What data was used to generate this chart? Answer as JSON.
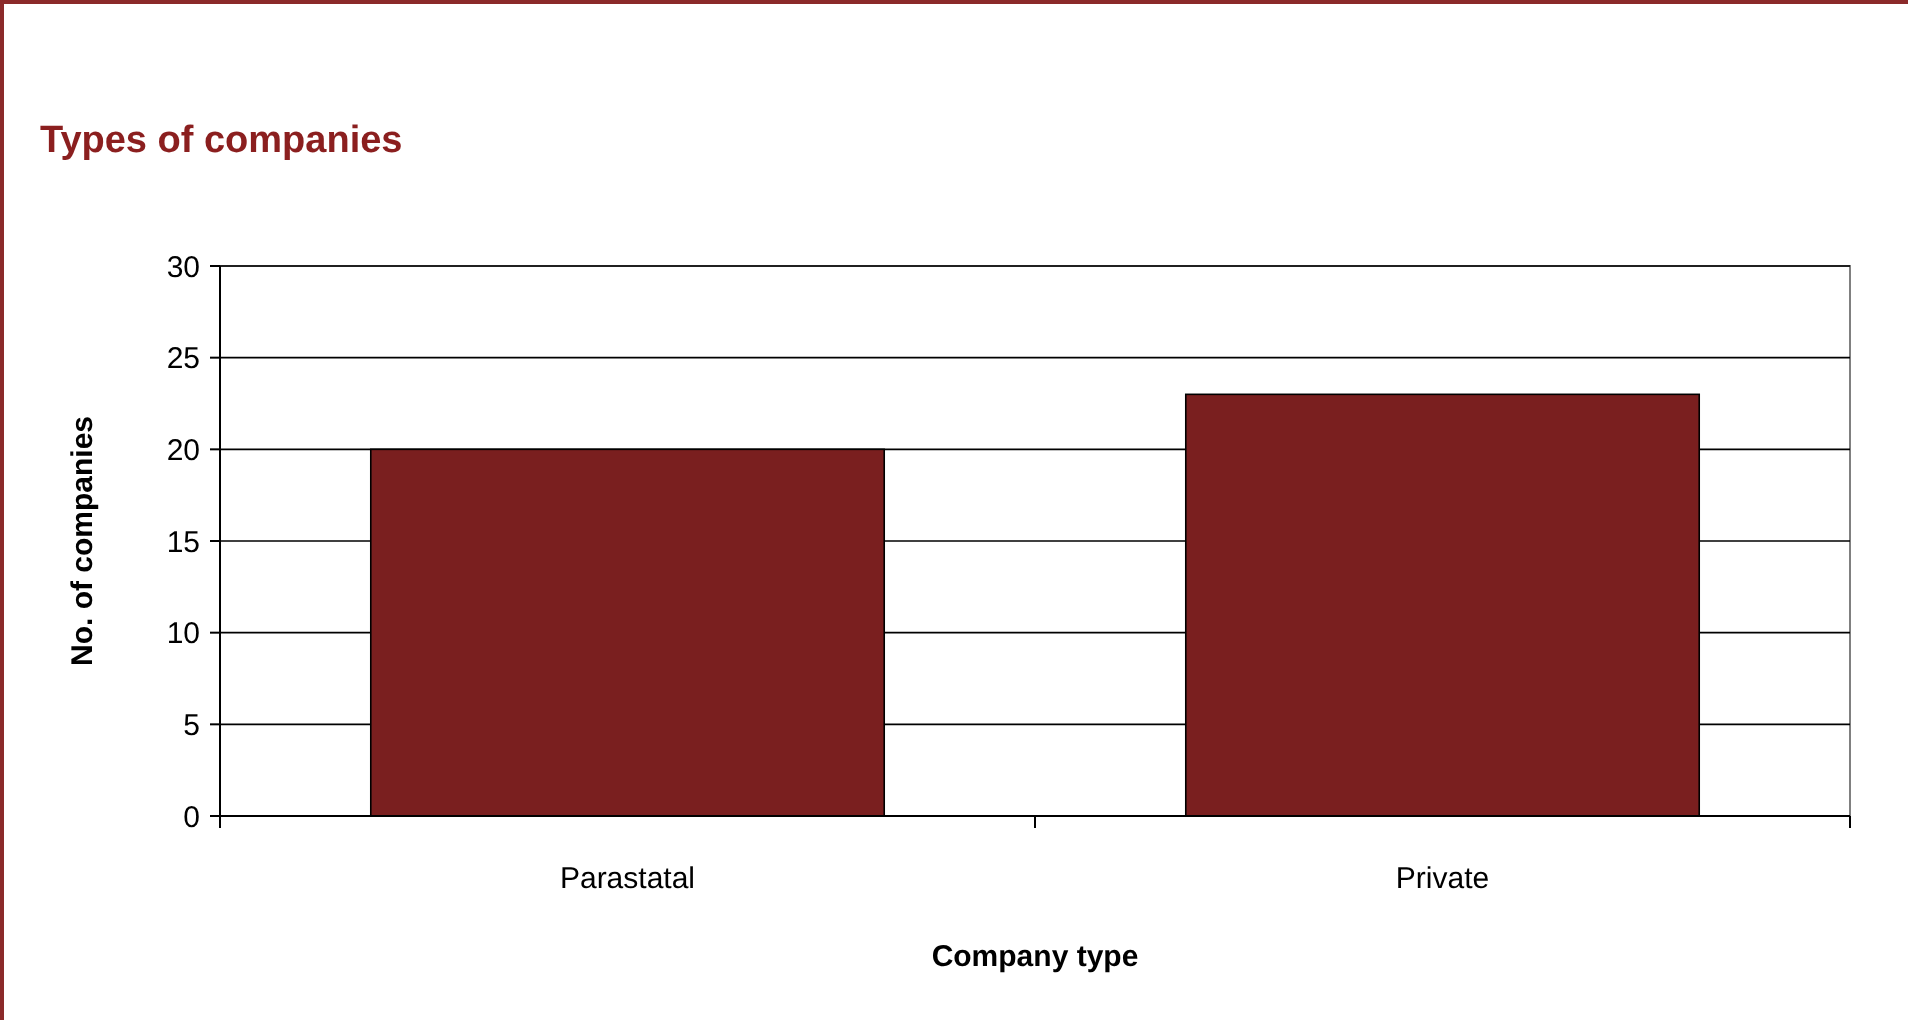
{
  "chart_data": {
    "type": "bar",
    "title": "Types of companies",
    "xlabel": "Company type",
    "ylabel": "No. of companies",
    "categories": [
      "Parastatal",
      "Private"
    ],
    "series": [
      {
        "color": "#7a1f1f",
        "values": [
          20,
          23
        ]
      }
    ],
    "ylim": [
      0,
      30
    ],
    "yticks": [
      0,
      5,
      10,
      15,
      20,
      25,
      30
    ],
    "grid": "y"
  }
}
